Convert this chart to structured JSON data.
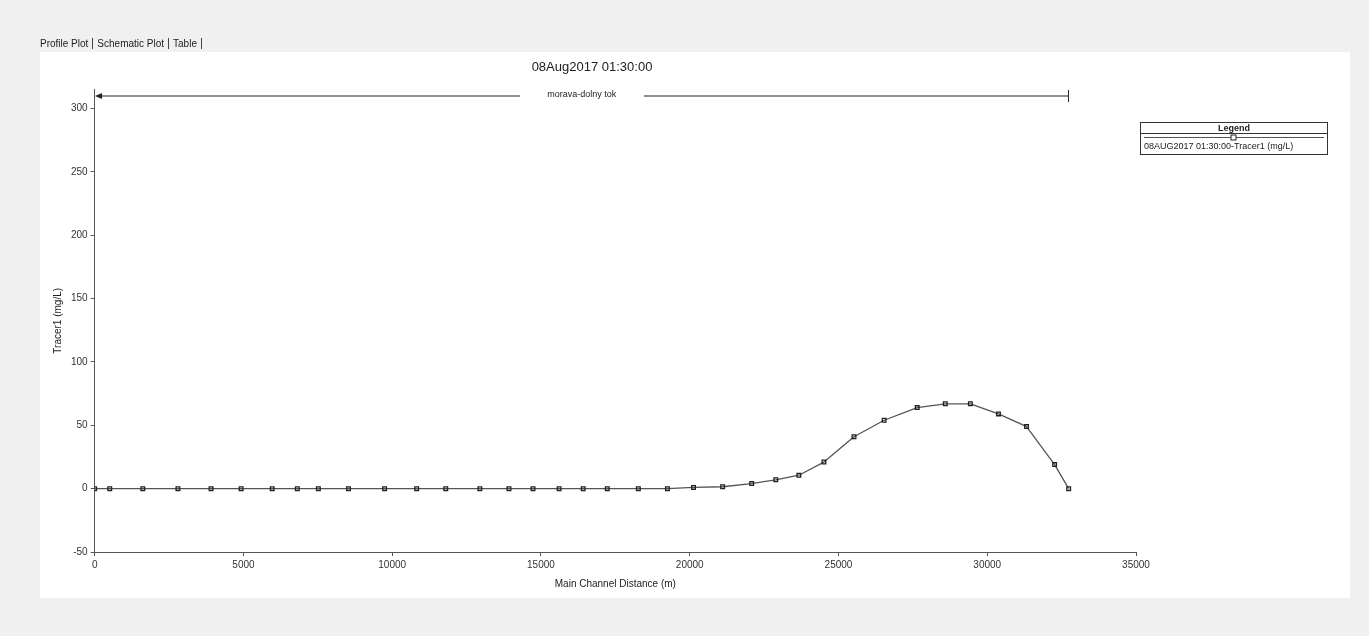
{
  "chart_data": {
    "type": "line",
    "title": "08Aug2017 01:30:00",
    "xlabel": "Main Channel Distance (m)",
    "ylabel": "Tracer1 (mg/L)",
    "legend_title": "Legend",
    "legend": "top right",
    "marker": "square",
    "line_style": "solid",
    "annotations": [
      "Profile Plot",
      "Schematic Plot",
      "Table",
      "morava-dolny tok"
    ],
    "xlim": [
      0,
      35000
    ],
    "xticks": [
      0,
      5000,
      10000,
      15000,
      20000,
      25000,
      30000,
      35000
    ],
    "ylim": [
      -50,
      315
    ],
    "yticks": [
      -50,
      0,
      50,
      100,
      150,
      200,
      250,
      300
    ],
    "grid": false,
    "series": [
      {
        "name": "08AUG2017 01:30:00-Tracer1 (mg/L)",
        "color": "#555555",
        "x": [
          0,
          506,
          1618,
          2798,
          3911,
          4922,
          5967,
          6810,
          7518,
          8530,
          9744,
          10823,
          11800,
          12946,
          13924,
          14733,
          15610,
          16419,
          17228,
          18273,
          19251,
          20128,
          21106,
          22083,
          22893,
          23668,
          24511,
          25522,
          26534,
          27646,
          28590,
          29433,
          30377,
          31321,
          32265,
          32737
        ],
        "values": [
          0,
          0,
          0,
          0,
          0,
          0,
          0,
          0,
          0,
          0,
          0,
          0,
          0,
          0,
          0,
          0,
          0,
          0,
          0,
          0,
          0,
          1,
          1.5,
          4,
          7,
          10.6,
          21,
          41,
          54,
          64,
          67,
          67,
          59,
          49,
          19,
          0
        ]
      }
    ]
  }
}
